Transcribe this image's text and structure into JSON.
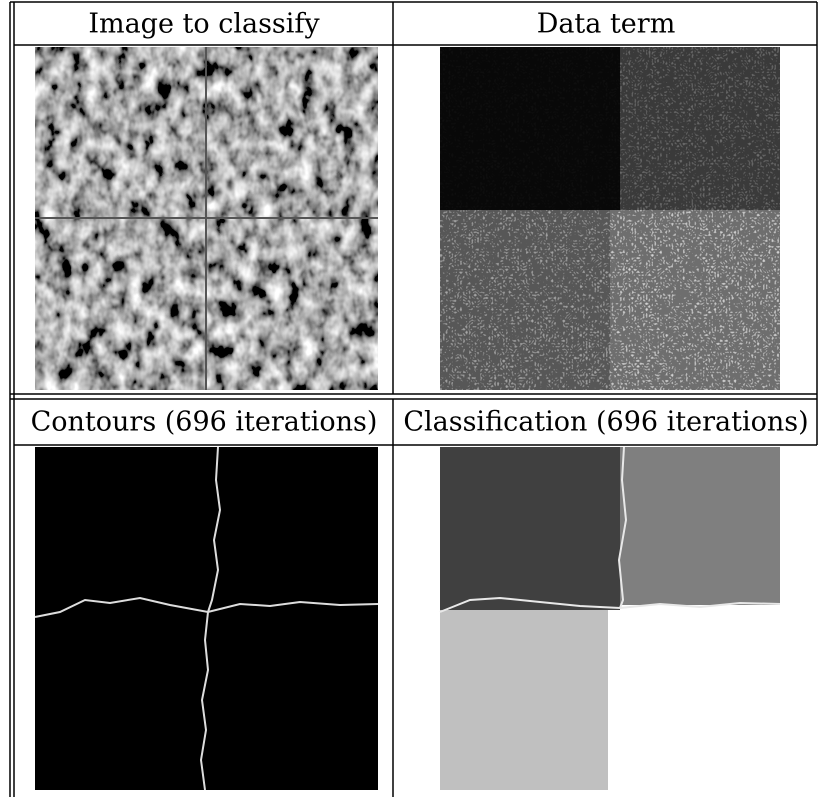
{
  "table": {
    "rows": [
      [
        "Image to classify",
        "Data term"
      ],
      [
        "Contours (696 iterations)",
        "Classification (696 iterations)"
      ]
    ]
  }
}
